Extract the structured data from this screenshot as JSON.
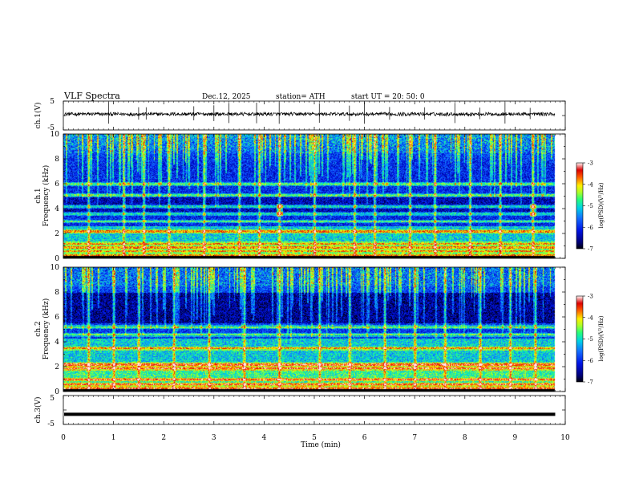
{
  "header": {
    "title": "VLF  Spectra",
    "date": "Dec.12, 2025",
    "station": "station= ATH",
    "start": "start  UT  =    20: 50: 0"
  },
  "chart_data": [
    {
      "type": "line",
      "panel": "ch1-waveform",
      "ylabel": "ch.1(V)",
      "ylim": [
        -5,
        5
      ],
      "ytick_labels": [
        "5",
        "-5"
      ],
      "xlim": [
        0,
        10
      ],
      "data_extent_min": [
        0,
        9.8
      ],
      "level_v": 0.5,
      "noise_v": 0.6,
      "spike_times_min": [
        0.9,
        1.5,
        1.65,
        2.6,
        3.0,
        3.3,
        3.85,
        4.3,
        5.1,
        5.7,
        6.0,
        6.5,
        7.2,
        7.8,
        8.3,
        8.8,
        9.3
      ]
    },
    {
      "type": "heatmap",
      "panel": "ch1-spectrogram",
      "ylabel": "ch.1\nFrequency  (kHz)",
      "ylabel_lines": [
        "ch.1",
        "Frequency  (kHz)"
      ],
      "ylim": [
        0,
        10
      ],
      "ytick_labels": [
        "10",
        "8",
        "6",
        "4",
        "2",
        "0"
      ],
      "xlim": [
        0,
        10
      ],
      "data_extent_min": [
        0,
        9.8
      ],
      "z_label": "log(PSD)(V²/Hz)",
      "zlim": [
        -7,
        -3
      ],
      "ztick_labels": [
        "-3",
        "-4",
        "-5",
        "-6",
        "-7"
      ],
      "horizontal_lines_khz": [
        0.3,
        0.6,
        0.9,
        1.2,
        2.2,
        3.0,
        3.6,
        4.2,
        5.1,
        6.0
      ],
      "sferic_times_min": [
        0.5,
        1.2,
        1.6,
        2.1,
        2.8,
        3.5,
        3.9,
        4.3,
        5.0,
        5.8,
        6.2,
        6.9,
        7.4,
        8.1,
        8.7,
        9.35
      ],
      "bright_patches": [
        [
          4.3,
          3.9
        ],
        [
          9.35,
          3.9
        ]
      ]
    },
    {
      "type": "heatmap",
      "panel": "ch2-spectrogram",
      "ylabel": "ch.2\nFrequency  (kHz)",
      "ylabel_lines": [
        "ch.2",
        "Frequency  (kHz)"
      ],
      "ylim": [
        0,
        10
      ],
      "ytick_labels": [
        "10",
        "8",
        "6",
        "4",
        "2",
        "0"
      ],
      "xlim": [
        0,
        10
      ],
      "data_extent_min": [
        0,
        9.8
      ],
      "z_label": "log(PSD)(V²/Hz)",
      "zlim": [
        -7,
        -3
      ],
      "ztick_labels": [
        "-3",
        "-4",
        "-5",
        "-6",
        "-7"
      ],
      "horizontal_lines_khz": [
        0.3,
        0.6,
        1.0,
        1.9,
        2.2,
        3.5,
        4.6,
        5.2
      ],
      "sferic_times_min": [
        0.5,
        1.0,
        1.5,
        2.2,
        2.9,
        3.6,
        4.3,
        5.1,
        5.7,
        6.4,
        7.0,
        7.6,
        8.3,
        8.9,
        9.4
      ]
    },
    {
      "type": "line",
      "panel": "ch3-waveform",
      "ylabel": "ch.3(V)",
      "ylim": [
        -5,
        5
      ],
      "ytick_labels": [
        "5",
        "-5"
      ],
      "xlim": [
        0,
        10
      ],
      "data_extent_min": [
        0,
        9.8
      ],
      "level_v": -1.5,
      "xlabel": "Time  (min)",
      "xtick_labels": [
        "0",
        "1",
        "2",
        "3",
        "4",
        "5",
        "6",
        "7",
        "8",
        "9",
        "10"
      ]
    }
  ]
}
